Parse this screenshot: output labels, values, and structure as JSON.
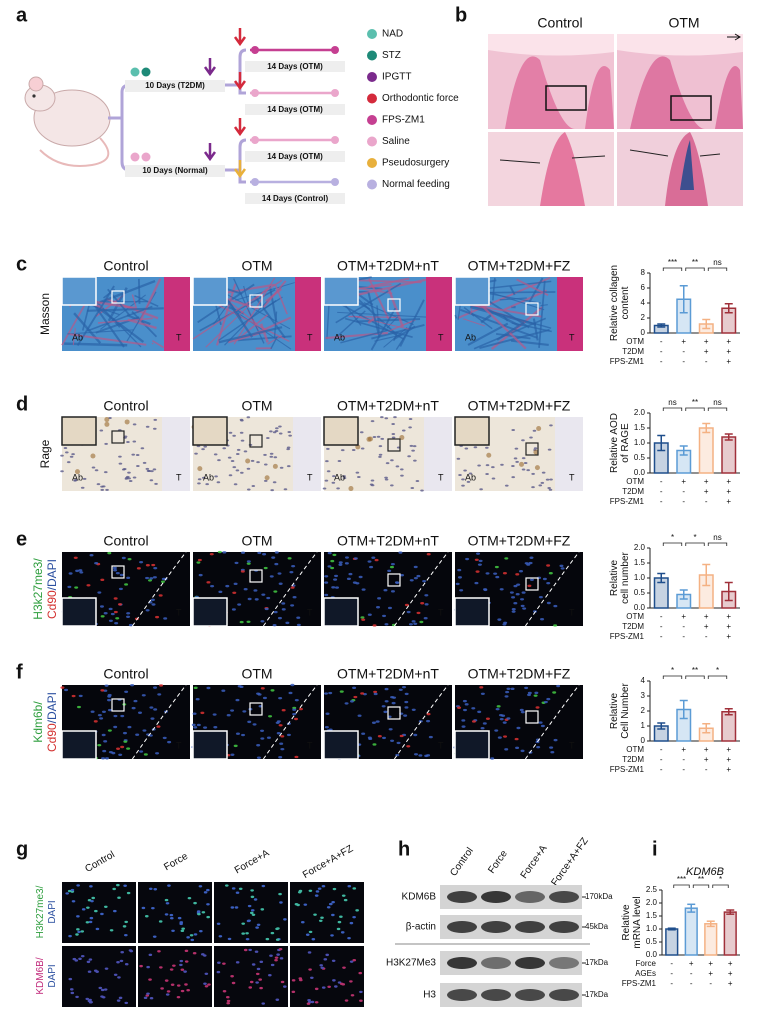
{
  "panel_a": {
    "label": "a",
    "phases": [
      "10 Days (T2DM)",
      "10 Days (Normal)"
    ],
    "treatments": [
      "14 Days (OTM)",
      "14 Days (OTM)",
      "14 Days (OTM)",
      "14 Days (Control)"
    ],
    "legend": [
      {
        "name": "NAD",
        "color": "#5bbfae"
      },
      {
        "name": "STZ",
        "color": "#1e8a78"
      },
      {
        "name": "IPGTT",
        "color": "#7b2a8c"
      },
      {
        "name": "Orthodontic force",
        "color": "#d42a3c"
      },
      {
        "name": "FPS-ZM1",
        "color": "#c53f91"
      },
      {
        "name": "Saline",
        "color": "#eaa6cb"
      },
      {
        "name": "Pseudosurgery",
        "color": "#e8b03c"
      },
      {
        "name": "Normal feeding",
        "color": "#b8b0e0"
      }
    ]
  },
  "panel_b": {
    "label": "b",
    "headers": [
      "Control",
      "OTM"
    ]
  },
  "histology": [
    {
      "label": "c",
      "stain": "masson",
      "row_label": [
        {
          "text": "Masson",
          "color": "#111111"
        }
      ],
      "headers": [
        "Control",
        "OTM",
        "OTM+T2DM+nT",
        "OTM+T2DM+FZ"
      ],
      "image_labels": [
        [
          "Ab",
          "T"
        ],
        [
          "T"
        ],
        [
          "Ab",
          "T"
        ],
        [
          "Ab",
          "T"
        ]
      ]
    },
    {
      "label": "d",
      "stain": "ihc",
      "row_label": [
        {
          "text": "Rage",
          "color": "#111111"
        }
      ],
      "headers": [
        "Control",
        "OTM",
        "OTM+T2DM+nT",
        "OTM+T2DM+FZ"
      ],
      "image_labels": [
        [
          "Ab",
          "T"
        ],
        [
          "Ab",
          "T"
        ],
        [
          "Ab",
          "T"
        ],
        [
          "Ab",
          "T"
        ]
      ]
    },
    {
      "label": "e",
      "stain": "if",
      "row_label": [
        {
          "text": "H3k27me3/",
          "color": "#2e9e3e"
        },
        {
          "text": "Cd90",
          "color": "#d3302f"
        },
        {
          "text": "/DAPI",
          "color": "#2b4fa0"
        }
      ],
      "headers": [
        "Control",
        "OTM",
        "OTM+T2DM+nT",
        "OTM+T2DM+FZ"
      ],
      "image_labels": [
        [
          "T"
        ],
        [
          "T"
        ],
        [
          "T"
        ],
        [
          "T"
        ]
      ]
    },
    {
      "label": "f",
      "stain": "if",
      "row_label": [
        {
          "text": "Kdm6b/",
          "color": "#2e9e3e"
        },
        {
          "text": "Cd90",
          "color": "#d3302f"
        },
        {
          "text": "/DAPI",
          "color": "#2b4fa0"
        }
      ],
      "headers": [
        "Control",
        "OTM",
        "OTM+T2DM+nT",
        "OTM+T2DM+FZ"
      ],
      "image_labels": [
        [
          "T"
        ],
        [
          "T"
        ],
        [
          "T"
        ],
        [
          "T"
        ]
      ]
    }
  ],
  "chart_data": [
    {
      "type": "bar",
      "ylabel": [
        "Relative collagen",
        "content"
      ],
      "conditions": [
        {
          "name": "OTM",
          "marks": [
            "-",
            "+",
            "+",
            "+"
          ]
        },
        {
          "name": "T2DM",
          "marks": [
            "-",
            "-",
            "+",
            "+"
          ]
        },
        {
          "name": "FPS-ZM1",
          "marks": [
            "-",
            "-",
            "-",
            "+"
          ]
        }
      ],
      "values": [
        1.0,
        4.5,
        1.2,
        3.3
      ],
      "errors": [
        0.2,
        1.8,
        0.6,
        0.6
      ],
      "colors": [
        "#1f4e8c",
        "#5b9bd5",
        "#f4b183",
        "#a0303a"
      ],
      "ylim": [
        0,
        8
      ],
      "yticks": [
        0,
        2,
        4,
        6,
        8
      ],
      "significance": [
        "***",
        "**",
        "ns"
      ]
    },
    {
      "type": "bar",
      "ylabel": [
        "Relative AOD",
        "of RAGE"
      ],
      "conditions": [
        {
          "name": "OTM",
          "marks": [
            "-",
            "+",
            "+",
            "+"
          ]
        },
        {
          "name": "T2DM",
          "marks": [
            "-",
            "-",
            "+",
            "+"
          ]
        },
        {
          "name": "FPS-ZM1",
          "marks": [
            "-",
            "-",
            "-",
            "+"
          ]
        }
      ],
      "values": [
        1.0,
        0.75,
        1.5,
        1.2
      ],
      "errors": [
        0.25,
        0.15,
        0.15,
        0.1
      ],
      "colors": [
        "#1f4e8c",
        "#5b9bd5",
        "#f4b183",
        "#a0303a"
      ],
      "ylim": [
        0,
        2
      ],
      "yticks": [
        {
          "value": 0,
          "label": "0.0"
        },
        0.5,
        {
          "value": 1,
          "label": "1.0"
        },
        1.5,
        {
          "value": 2,
          "label": "2.0"
        }
      ],
      "significance": [
        "ns",
        "**",
        "ns"
      ]
    },
    {
      "type": "bar",
      "ylabel": [
        "Relative",
        "cell number"
      ],
      "conditions": [
        {
          "name": "OTM",
          "marks": [
            "-",
            "+",
            "+",
            "+"
          ]
        },
        {
          "name": "T2DM",
          "marks": [
            "-",
            "-",
            "+",
            "+"
          ]
        },
        {
          "name": "FPS-ZM1",
          "marks": [
            "-",
            "-",
            "-",
            "+"
          ]
        }
      ],
      "values": [
        1.0,
        0.45,
        1.1,
        0.55
      ],
      "errors": [
        0.15,
        0.15,
        0.35,
        0.3
      ],
      "colors": [
        "#1f4e8c",
        "#5b9bd5",
        "#f4b183",
        "#a0303a"
      ],
      "ylim": [
        0,
        2
      ],
      "yticks": [
        {
          "value": 0,
          "label": "0.0"
        },
        0.5,
        {
          "value": 1,
          "label": "1.0"
        },
        1.5,
        {
          "value": 2,
          "label": "2.0"
        }
      ],
      "significance": [
        "*",
        "*",
        "ns"
      ]
    },
    {
      "type": "bar",
      "ylabel": [
        "Relative",
        "Cell Number"
      ],
      "conditions": [
        {
          "name": "OTM",
          "marks": [
            "-",
            "+",
            "+",
            "+"
          ]
        },
        {
          "name": "T2DM",
          "marks": [
            "-",
            "-",
            "+",
            "+"
          ]
        },
        {
          "name": "FPS-ZM1",
          "marks": [
            "-",
            "-",
            "-",
            "+"
          ]
        }
      ],
      "values": [
        1.0,
        2.1,
        0.85,
        1.95
      ],
      "errors": [
        0.2,
        0.6,
        0.3,
        0.2
      ],
      "colors": [
        "#1f4e8c",
        "#5b9bd5",
        "#f4b183",
        "#a0303a"
      ],
      "ylim": [
        0,
        4
      ],
      "yticks": [
        0,
        1,
        2,
        3,
        4
      ],
      "significance": [
        "*",
        "**",
        "*"
      ]
    },
    {
      "type": "bar",
      "panel": "i",
      "title": "KDM6B",
      "ylabel": [
        "Relative",
        "mRNA level"
      ],
      "conditions": [
        {
          "name": "Force",
          "marks": [
            "-",
            "+",
            "+",
            "+"
          ]
        },
        {
          "name": "AGEs",
          "marks": [
            "-",
            "-",
            "+",
            "+"
          ]
        },
        {
          "name": "FPS-ZM1",
          "marks": [
            "-",
            "-",
            "-",
            "+"
          ]
        }
      ],
      "values": [
        1.0,
        1.8,
        1.2,
        1.65
      ],
      "errors": [
        0.03,
        0.15,
        0.1,
        0.08
      ],
      "colors": [
        "#1f4e8c",
        "#5b9bd5",
        "#f4b183",
        "#a0303a"
      ],
      "ylim": [
        0,
        2.5
      ],
      "yticks": [
        {
          "value": 0,
          "label": "0.0"
        },
        0.5,
        {
          "value": 1,
          "label": "1.0"
        },
        1.5,
        {
          "value": 2,
          "label": "2.0"
        },
        2.5
      ],
      "significance": [
        "***",
        "**",
        "*"
      ]
    }
  ],
  "panel_g": {
    "label": "g",
    "headers": [
      "Control",
      "Force",
      "Force+A",
      "Force+A+FZ"
    ],
    "rows": [
      [
        {
          "text": "H3K27me3/",
          "color": "#2e9e3e"
        },
        {
          "text": "DAPI",
          "color": "#2b4fa0"
        }
      ],
      [
        {
          "text": "KDM6B/",
          "color": "#c0287a"
        },
        {
          "text": "DAPI",
          "color": "#2b4fa0"
        }
      ]
    ]
  },
  "panel_h": {
    "label": "h",
    "headers": [
      "Control",
      "Force",
      "Force+A",
      "Force+A+FZ"
    ],
    "blots": [
      {
        "name": "KDM6B",
        "size": "170kDa"
      },
      {
        "name": "β-actin",
        "size": "45kDa"
      },
      {
        "name": "H3K27Me3",
        "size": "17kDa"
      },
      {
        "name": "H3",
        "size": "17kDa"
      }
    ]
  }
}
